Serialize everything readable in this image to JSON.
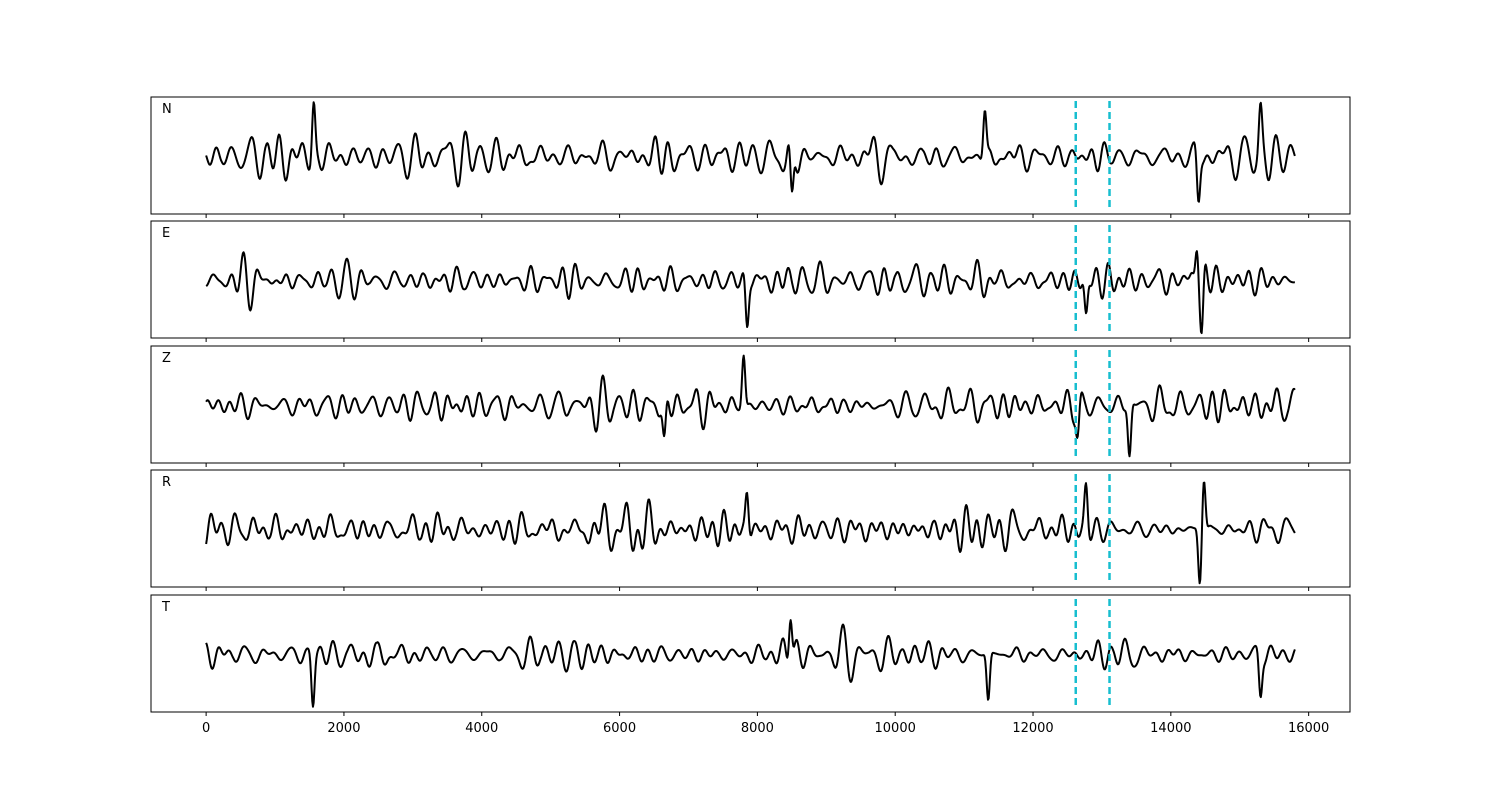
{
  "chart_data": {
    "type": "line",
    "subtype": "stacked-waveforms",
    "xlim": [
      -800,
      16600
    ],
    "x_range": [
      0,
      15800
    ],
    "xticks": [
      0,
      2000,
      4000,
      6000,
      8000,
      10000,
      12000,
      14000,
      16000
    ],
    "tick_labels": [
      "0",
      "2000",
      "4000",
      "6000",
      "8000",
      "10000",
      "12000",
      "14000",
      "16000"
    ],
    "grid": false,
    "legend": "none",
    "line_color": "#000000",
    "marker_color": "#17becf",
    "markers": [
      {
        "x": 12620,
        "style": "dashed"
      },
      {
        "x": 13110,
        "style": "dashed"
      }
    ],
    "series": [
      {
        "name": "N",
        "seed": 11,
        "peaks": [
          [
            1560,
            1.0
          ],
          [
            8500,
            -1.05
          ],
          [
            11300,
            0.9
          ],
          [
            14400,
            -0.9
          ],
          [
            15300,
            0.75
          ]
        ]
      },
      {
        "name": "E",
        "seed": 23,
        "peaks": [
          [
            7850,
            -0.9
          ],
          [
            14450,
            -1.0
          ],
          [
            14380,
            0.9
          ],
          [
            12770,
            -0.75
          ]
        ]
      },
      {
        "name": "Z",
        "seed": 37,
        "peaks": [
          [
            7800,
            1.0
          ],
          [
            13400,
            -1.0
          ],
          [
            6650,
            -0.8
          ],
          [
            12650,
            -0.6
          ]
        ]
      },
      {
        "name": "R",
        "seed": 53,
        "peaks": [
          [
            14420,
            -1.0
          ],
          [
            14480,
            1.0
          ],
          [
            7850,
            0.75
          ],
          [
            12770,
            0.8
          ]
        ]
      },
      {
        "name": "T",
        "seed": 71,
        "peaks": [
          [
            8480,
            1.0
          ],
          [
            1550,
            -0.95
          ],
          [
            11350,
            -0.9
          ],
          [
            15300,
            -0.75
          ]
        ]
      }
    ]
  }
}
